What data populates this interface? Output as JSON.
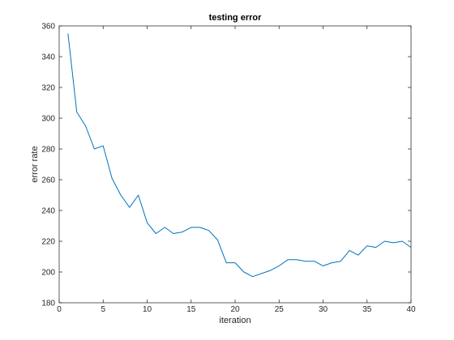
{
  "chart_data": {
    "type": "line",
    "title": "testing error",
    "xlabel": "iteration",
    "ylabel": "error rate",
    "xlim": [
      0,
      40
    ],
    "ylim": [
      180,
      360
    ],
    "xticks": [
      0,
      5,
      10,
      15,
      20,
      25,
      30,
      35,
      40
    ],
    "yticks": [
      180,
      200,
      220,
      240,
      260,
      280,
      300,
      320,
      340,
      360
    ],
    "grid": false,
    "series": [
      {
        "color": "#0072BD",
        "x": [
          1,
          2,
          3,
          4,
          5,
          6,
          7,
          8,
          9,
          10,
          11,
          12,
          13,
          14,
          15,
          16,
          17,
          18,
          19,
          20,
          21,
          22,
          23,
          24,
          25,
          26,
          27,
          28,
          29,
          30,
          31,
          32,
          33,
          34,
          35,
          36,
          37,
          38,
          39,
          40
        ],
        "y": [
          355,
          304,
          295,
          280,
          282,
          261,
          250,
          242,
          250,
          232,
          225,
          229,
          225,
          226,
          229,
          229,
          227,
          221,
          206,
          206,
          200,
          197,
          199,
          201,
          204,
          208,
          208,
          207,
          207,
          204,
          206,
          207,
          214,
          211,
          217,
          216,
          220,
          219,
          220,
          216
        ]
      }
    ]
  }
}
